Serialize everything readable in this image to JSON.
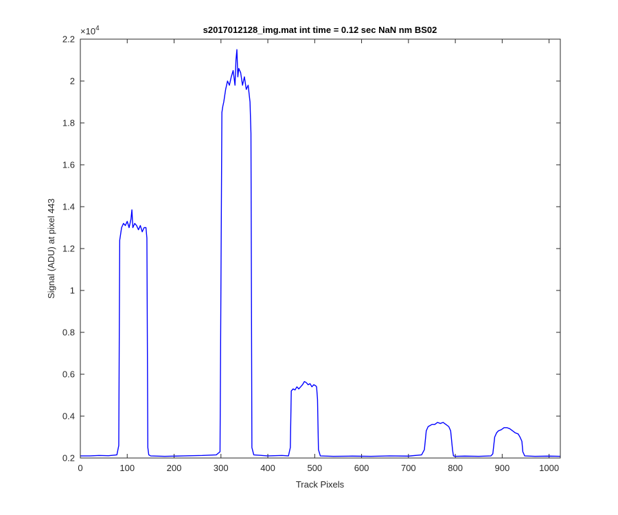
{
  "chart_data": {
    "type": "line",
    "title": "s2017012128_img.mat int time = 0.12 sec  NaN nm BS02",
    "xlabel": "Track Pixels",
    "ylabel": "Signal (ADU) at pixel 443",
    "xlim": [
      0,
      1024
    ],
    "ylim": [
      2000,
      22000
    ],
    "y_exponent_label": "×10",
    "y_exponent_power": "4",
    "x_ticks": [
      0,
      100,
      200,
      300,
      400,
      500,
      600,
      700,
      800,
      900,
      1000
    ],
    "x_tick_labels": [
      "0",
      "100",
      "200",
      "300",
      "400",
      "500",
      "600",
      "700",
      "800",
      "900",
      "1000"
    ],
    "y_ticks": [
      2000,
      4000,
      6000,
      8000,
      10000,
      12000,
      14000,
      16000,
      18000,
      20000,
      22000
    ],
    "y_tick_labels": [
      "0.2",
      "0.4",
      "0.6",
      "0.8",
      "1",
      "1.2",
      "1.4",
      "1.6",
      "1.8",
      "2",
      "2.2"
    ],
    "grid": false,
    "line_color": "#0000ff",
    "series": [
      {
        "x": [
          0,
          20,
          40,
          60,
          78,
          82,
          84,
          88,
          92,
          96,
          100,
          104,
          108,
          110,
          112,
          116,
          120,
          124,
          128,
          132,
          136,
          140,
          142,
          144,
          146,
          150,
          180,
          220,
          260,
          290,
          298,
          302,
          304,
          306,
          310,
          314,
          318,
          322,
          326,
          330,
          332,
          334,
          336,
          338,
          342,
          346,
          350,
          354,
          358,
          362,
          364,
          366,
          370,
          400,
          430,
          444,
          448,
          450,
          454,
          458,
          462,
          466,
          470,
          474,
          478,
          482,
          486,
          490,
          494,
          498,
          502,
          504,
          506,
          508,
          512,
          540,
          580,
          620,
          660,
          700,
          728,
          734,
          738,
          742,
          746,
          750,
          756,
          762,
          768,
          774,
          780,
          786,
          790,
          794,
          796,
          800,
          820,
          850,
          876,
          880,
          884,
          888,
          892,
          898,
          904,
          910,
          916,
          922,
          928,
          934,
          938,
          942,
          944,
          948,
          970,
          1000,
          1024
        ],
        "y": [
          2100,
          2100,
          2120,
          2110,
          2150,
          2600,
          12400,
          13000,
          13200,
          13100,
          13300,
          13000,
          13400,
          13850,
          13000,
          13200,
          13100,
          12900,
          13100,
          12800,
          13000,
          13000,
          12500,
          2500,
          2150,
          2100,
          2080,
          2100,
          2120,
          2150,
          2300,
          18500,
          18800,
          19000,
          19600,
          20000,
          19800,
          20200,
          20500,
          19800,
          21000,
          21500,
          20200,
          20600,
          20400,
          19800,
          20200,
          19600,
          19800,
          19000,
          17500,
          2500,
          2150,
          2100,
          2120,
          2100,
          2500,
          5200,
          5300,
          5250,
          5400,
          5300,
          5400,
          5500,
          5650,
          5600,
          5500,
          5550,
          5400,
          5500,
          5450,
          5400,
          4800,
          2400,
          2100,
          2080,
          2090,
          2080,
          2100,
          2090,
          2150,
          2400,
          3300,
          3500,
          3550,
          3600,
          3600,
          3700,
          3650,
          3700,
          3600,
          3500,
          3300,
          2400,
          2100,
          2080,
          2090,
          2080,
          2100,
          2200,
          3000,
          3200,
          3300,
          3350,
          3450,
          3450,
          3400,
          3300,
          3200,
          3150,
          3000,
          2800,
          2300,
          2100,
          2080,
          2090,
          2080
        ]
      }
    ]
  }
}
